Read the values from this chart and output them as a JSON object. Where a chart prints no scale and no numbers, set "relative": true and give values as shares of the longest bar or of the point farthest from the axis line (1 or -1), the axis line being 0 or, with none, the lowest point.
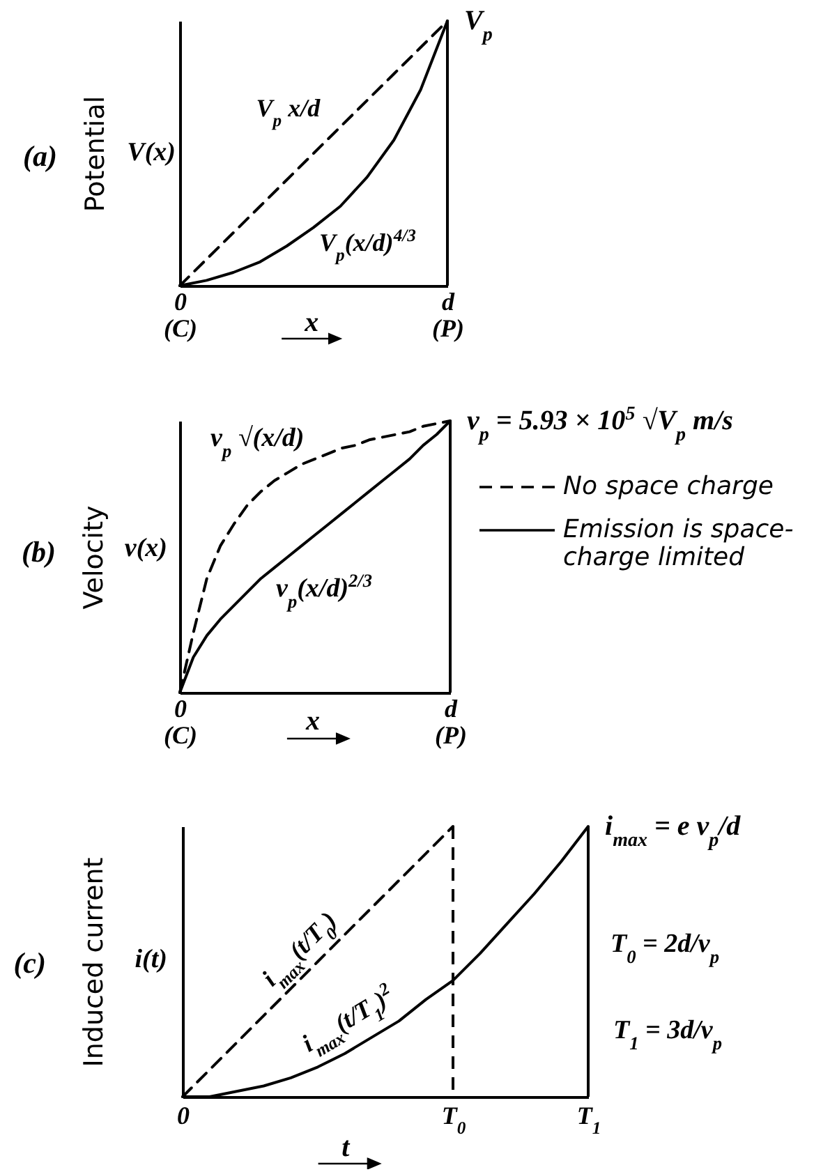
{
  "chart_data": [
    {
      "type": "line",
      "title": "(a)",
      "xlabel": "x",
      "ylabel": "Potential",
      "relative": true,
      "categories": [
        "0\n(C)",
        null,
        null,
        null,
        null,
        null,
        null,
        null,
        null,
        null,
        "d\n(P)"
      ],
      "series": [
        {
          "name": "V$_{p}$ x/d",
          "color": "#000000",
          "line_style": "dashed",
          "values": [
            0,
            0.1,
            0.2,
            0.3,
            0.4,
            0.5,
            0.6,
            0.7,
            0.8,
            0.9,
            1
          ]
        },
        {
          "name": "V$_{p}$(x/d)$^{4/3}$",
          "color": "#000000",
          "line_style": "solid",
          "values": [
            0,
            0.02,
            0.05,
            0.09,
            0.15,
            0.22,
            0.3,
            0.41,
            0.55,
            0.74,
            1
          ]
        }
      ],
      "ref_lines": [
        {
          "axis": "x",
          "value": "d\n(P)",
          "color": "#000000"
        }
      ],
      "annotations": [
        "V(x)",
        {
          "text": "V$_{p}$",
          "x": "d\n(P)",
          "y": 1
        }
      ]
    },
    {
      "type": "line",
      "title": "(b)",
      "xlabel": "x",
      "ylabel": "Velocity",
      "relative": true,
      "legend": "right",
      "categories": [
        "0\n(C)",
        null,
        null,
        null,
        null,
        null,
        null,
        null,
        null,
        null,
        null,
        null,
        null,
        null,
        null,
        null,
        null,
        null,
        null,
        null,
        "d\n(P)"
      ],
      "series": [
        {
          "name": "No space charge",
          "color": "#000000",
          "line_style": "dashed",
          "values": [
            0,
            0.22,
            0.42,
            0.54,
            0.62,
            0.69,
            0.74,
            0.78,
            0.81,
            0.84,
            0.86,
            0.88,
            0.9,
            0.91,
            0.93,
            0.94,
            0.95,
            0.96,
            0.98,
            0.99,
            1
          ]
        },
        {
          "name": "Emission is space-charge limited",
          "color": "#000000",
          "line_style": "solid",
          "values": [
            0,
            0.13,
            0.21,
            0.27,
            0.32,
            0.37,
            0.42,
            0.46,
            0.5,
            0.54,
            0.58,
            0.62,
            0.66,
            0.7,
            0.74,
            0.78,
            0.82,
            0.86,
            0.91,
            0.95,
            1
          ]
        }
      ],
      "ref_lines": [
        {
          "axis": "x",
          "value": "d\n(P)",
          "color": "#000000"
        }
      ],
      "annotations": [
        "v(x)",
        {
          "text": "v$_{p}$ = 5.93 × 10$^{5}$ √V$_{p}$ m/s",
          "x": "d\n(P)",
          "y": 1
        },
        "v$_{p}$ √(x/d)",
        "v$_{p}$(x/d)$^{2/3}$"
      ]
    },
    {
      "type": "line",
      "title": "(c)",
      "xlabel": "t",
      "ylabel": "Induced current",
      "relative": true,
      "categories": [
        "0",
        null,
        null,
        null,
        null,
        null,
        null,
        null,
        null,
        null,
        "T$_{0}$",
        null,
        null,
        null,
        null,
        "T$_{1}$"
      ],
      "series": [
        {
          "name": "i$_{max}$(t/T$_{0}$)",
          "color": "#000000",
          "line_style": "dashed",
          "values": [
            0,
            0.1,
            0.2,
            0.3,
            0.4,
            0.5,
            0.6,
            0.7,
            0.8,
            0.9,
            1,
            null,
            null,
            null,
            null,
            null
          ]
        },
        {
          "name": "i$_{max}$(t/T$_{1}$)$^{2}$",
          "color": "#000000",
          "line_style": "solid",
          "values": [
            0,
            0,
            0.02,
            0.04,
            0.07,
            0.11,
            0.16,
            0.22,
            0.28,
            0.36,
            0.43,
            0.53,
            0.64,
            0.75,
            0.87,
            1
          ]
        }
      ],
      "ref_lines": [
        {
          "axis": "x",
          "value": "T$_{0}$",
          "color": "#000000",
          "line_style": "dashed"
        },
        {
          "axis": "x",
          "value": "T$_{1}$",
          "color": "#000000"
        }
      ],
      "annotations": [
        "i(t)",
        {
          "text": "i$_{max}$ = e v$_{p}$/d",
          "x": "T$_{1}$",
          "y": 1
        },
        "T$_{0}$ = 2d/v$_{p}$",
        "T$_{1}$ = 3d/v$_{p}$"
      ]
    }
  ]
}
